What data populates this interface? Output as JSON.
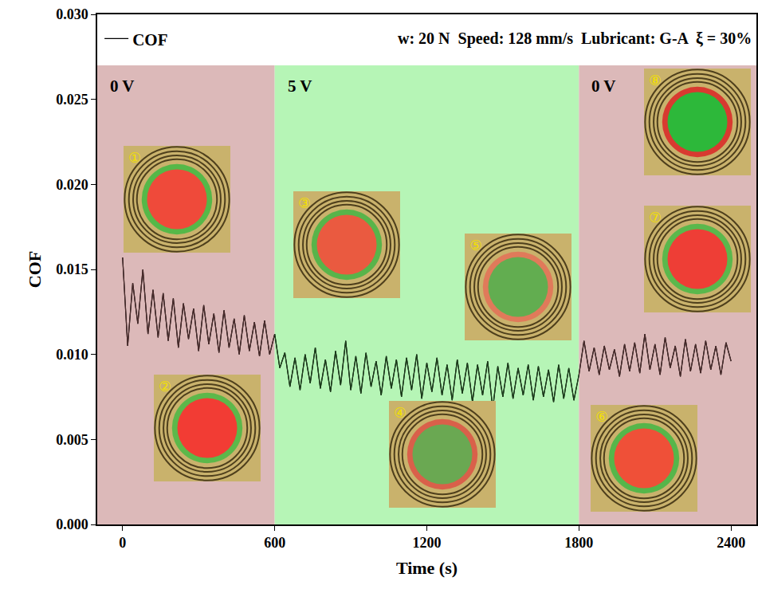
{
  "chart_data": {
    "type": "line",
    "x_label": "Time (s)",
    "y_label": "COF",
    "note": "w: 20 N  Speed: 128 mm/s  Lubricant: G-A  ξ = 30%",
    "xlim": [
      -100,
      2500
    ],
    "xticks": [
      0,
      600,
      1200,
      1800,
      2400
    ],
    "ylim": [
      0,
      0.03
    ],
    "yticks": [
      {
        "value": 0,
        "label": "0.000"
      },
      {
        "value": 0.005,
        "label": "0.005"
      },
      {
        "value": 0.01,
        "label": "0.010"
      },
      {
        "value": 0.015,
        "label": "0.015"
      },
      {
        "value": 0.02,
        "label": "0.020"
      },
      {
        "value": 0.025,
        "label": "0.025"
      },
      {
        "value": 0.03,
        "label": "0.030"
      }
    ],
    "grid": false,
    "legend": "top left",
    "band_top": 0.027,
    "regions": [
      {
        "label": "0 V",
        "from": -100,
        "to": 600,
        "colors": [
          "#dcb9b9",
          "#4a2b2b"
        ]
      },
      {
        "label": "5 V",
        "from": 600,
        "to": 1800,
        "colors": [
          "#b6f5b6",
          "#1a3d1a"
        ]
      },
      {
        "label": "0 V",
        "from": 1800,
        "to": 2500,
        "colors": [
          "#dcb9b9",
          "#4a2b2b"
        ]
      }
    ],
    "insets": [
      {
        "label": "①",
        "colors": [
          "#ef4a3a",
          "#55b848"
        ]
      },
      {
        "label": "②",
        "colors": [
          "#f23c34",
          "#5cb84a"
        ]
      },
      {
        "label": "③",
        "colors": [
          "#ea5a40",
          "#58b44a"
        ]
      },
      {
        "label": "④",
        "colors": [
          "#6aa852",
          "#d9604a"
        ]
      },
      {
        "label": "⑤",
        "colors": [
          "#62ad50",
          "#e07a5a"
        ]
      },
      {
        "label": "⑥",
        "colors": [
          "#ef5038",
          "#56b64a"
        ]
      },
      {
        "label": "⑦",
        "colors": [
          "#ee3e36",
          "#5ab84c"
        ]
      },
      {
        "label": "⑧",
        "colors": [
          "#2db83a",
          "#d83a30"
        ]
      }
    ],
    "series": [
      {
        "name": "COF",
        "color": "#000000",
        "x": [
          0,
          20,
          40,
          60,
          80,
          100,
          120,
          140,
          160,
          180,
          200,
          220,
          240,
          260,
          280,
          300,
          320,
          340,
          360,
          380,
          400,
          420,
          440,
          460,
          480,
          500,
          520,
          540,
          560,
          580,
          600,
          620,
          640,
          660,
          680,
          700,
          720,
          740,
          760,
          780,
          800,
          820,
          840,
          860,
          880,
          900,
          920,
          940,
          960,
          980,
          1000,
          1020,
          1040,
          1060,
          1080,
          1100,
          1120,
          1140,
          1160,
          1180,
          1200,
          1220,
          1240,
          1260,
          1280,
          1300,
          1320,
          1340,
          1360,
          1380,
          1400,
          1420,
          1440,
          1460,
          1480,
          1500,
          1520,
          1540,
          1560,
          1580,
          1600,
          1620,
          1640,
          1660,
          1680,
          1700,
          1720,
          1740,
          1760,
          1780,
          1800,
          1820,
          1840,
          1860,
          1880,
          1900,
          1920,
          1940,
          1960,
          1980,
          2000,
          2020,
          2040,
          2060,
          2080,
          2100,
          2120,
          2140,
          2160,
          2180,
          2200,
          2220,
          2240,
          2260,
          2280,
          2300,
          2320,
          2340,
          2360,
          2380,
          2400
        ],
        "values": [
          0.0157,
          0.0105,
          0.0142,
          0.0118,
          0.015,
          0.0112,
          0.0138,
          0.011,
          0.0136,
          0.0108,
          0.0133,
          0.0104,
          0.013,
          0.0109,
          0.0127,
          0.0102,
          0.0129,
          0.0106,
          0.0124,
          0.0101,
          0.0126,
          0.0104,
          0.0121,
          0.01,
          0.0123,
          0.0102,
          0.0119,
          0.0099,
          0.012,
          0.01,
          0.0112,
          0.0092,
          0.0101,
          0.0081,
          0.0098,
          0.0079,
          0.01,
          0.0083,
          0.0104,
          0.008,
          0.0097,
          0.0078,
          0.0102,
          0.0082,
          0.0108,
          0.0079,
          0.0099,
          0.0077,
          0.0101,
          0.0081,
          0.0096,
          0.0076,
          0.0099,
          0.008,
          0.0097,
          0.0075,
          0.0098,
          0.0079,
          0.01,
          0.0074,
          0.0095,
          0.0078,
          0.0098,
          0.0076,
          0.0094,
          0.0073,
          0.0097,
          0.0077,
          0.0095,
          0.0072,
          0.0094,
          0.0076,
          0.0096,
          0.0068,
          0.0093,
          0.0075,
          0.0095,
          0.0074,
          0.0092,
          0.0076,
          0.0094,
          0.0073,
          0.0093,
          0.0075,
          0.0091,
          0.0072,
          0.0094,
          0.0074,
          0.0092,
          0.0073,
          0.0088,
          0.0108,
          0.009,
          0.0104,
          0.0088,
          0.0105,
          0.0091,
          0.0103,
          0.0087,
          0.0106,
          0.009,
          0.0107,
          0.0089,
          0.0112,
          0.0091,
          0.0106,
          0.0088,
          0.011,
          0.0092,
          0.0105,
          0.0087,
          0.0109,
          0.009,
          0.0106,
          0.0089,
          0.0108,
          0.0091,
          0.0105,
          0.0088,
          0.0107,
          0.0096
        ]
      }
    ]
  }
}
